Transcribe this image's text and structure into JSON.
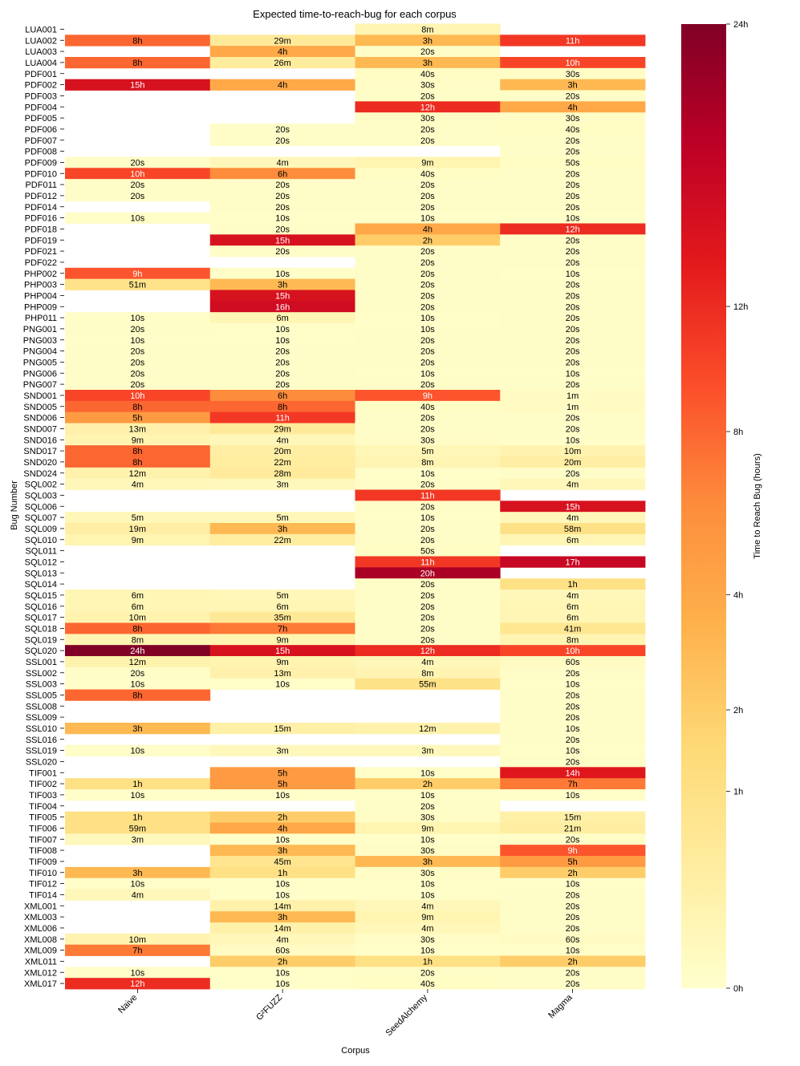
{
  "chart_data": {
    "type": "heatmap",
    "title": "Expected time-to-reach-bug for each corpus",
    "xlabel": "Corpus",
    "ylabel": "Bug Number",
    "columns": [
      "Naive",
      "G²FUZZ",
      "SeedAlchemy",
      "Magma"
    ],
    "colorbar": {
      "label": "Time to Reach Bug (hours)",
      "ticks": [
        "24h",
        "12h",
        "8h",
        "4h",
        "2h",
        "1h",
        "0h"
      ],
      "scale": "sqrt",
      "range_hours": [
        0,
        24
      ]
    },
    "rows": [
      {
        "bug": "LUA001",
        "cells": [
          "",
          "",
          "8m",
          ""
        ]
      },
      {
        "bug": "LUA002",
        "cells": [
          "8h",
          "29m",
          "3h",
          "11h"
        ]
      },
      {
        "bug": "LUA003",
        "cells": [
          "",
          "4h",
          "20s",
          ""
        ]
      },
      {
        "bug": "LUA004",
        "cells": [
          "8h",
          "26m",
          "3h",
          "10h"
        ]
      },
      {
        "bug": "PDF001",
        "cells": [
          "",
          "",
          "40s",
          "30s"
        ]
      },
      {
        "bug": "PDF002",
        "cells": [
          "15h",
          "4h",
          "30s",
          "3h"
        ]
      },
      {
        "bug": "PDF003",
        "cells": [
          "",
          "",
          "20s",
          "20s"
        ]
      },
      {
        "bug": "PDF004",
        "cells": [
          "",
          "",
          "12h",
          "4h"
        ]
      },
      {
        "bug": "PDF005",
        "cells": [
          "",
          "",
          "30s",
          "30s"
        ]
      },
      {
        "bug": "PDF006",
        "cells": [
          "",
          "20s",
          "20s",
          "40s"
        ]
      },
      {
        "bug": "PDF007",
        "cells": [
          "",
          "20s",
          "20s",
          "20s"
        ]
      },
      {
        "bug": "PDF008",
        "cells": [
          "",
          "",
          "",
          "20s"
        ]
      },
      {
        "bug": "PDF009",
        "cells": [
          "20s",
          "4m",
          "9m",
          "50s"
        ]
      },
      {
        "bug": "PDF010",
        "cells": [
          "10h",
          "6h",
          "40s",
          "20s"
        ]
      },
      {
        "bug": "PDF011",
        "cells": [
          "20s",
          "20s",
          "20s",
          "20s"
        ]
      },
      {
        "bug": "PDF012",
        "cells": [
          "20s",
          "20s",
          "20s",
          "20s"
        ]
      },
      {
        "bug": "PDF014",
        "cells": [
          "",
          "20s",
          "20s",
          "20s"
        ]
      },
      {
        "bug": "PDF016",
        "cells": [
          "10s",
          "10s",
          "10s",
          "10s"
        ]
      },
      {
        "bug": "PDF018",
        "cells": [
          "",
          "20s",
          "4h",
          "12h"
        ]
      },
      {
        "bug": "PDF019",
        "cells": [
          "",
          "15h",
          "2h",
          "20s"
        ]
      },
      {
        "bug": "PDF021",
        "cells": [
          "",
          "20s",
          "20s",
          "20s"
        ]
      },
      {
        "bug": "PDF022",
        "cells": [
          "",
          "",
          "20s",
          "20s"
        ]
      },
      {
        "bug": "PHP002",
        "cells": [
          "9h",
          "10s",
          "20s",
          "10s"
        ]
      },
      {
        "bug": "PHP003",
        "cells": [
          "51m",
          "3h",
          "20s",
          "20s"
        ]
      },
      {
        "bug": "PHP004",
        "cells": [
          "",
          "15h",
          "20s",
          "20s"
        ]
      },
      {
        "bug": "PHP009",
        "cells": [
          "",
          "16h",
          "20s",
          "20s"
        ]
      },
      {
        "bug": "PHP011",
        "cells": [
          "10s",
          "6m",
          "10s",
          "20s"
        ]
      },
      {
        "bug": "PNG001",
        "cells": [
          "20s",
          "10s",
          "10s",
          "20s"
        ]
      },
      {
        "bug": "PNG003",
        "cells": [
          "10s",
          "10s",
          "20s",
          "20s"
        ]
      },
      {
        "bug": "PNG004",
        "cells": [
          "20s",
          "20s",
          "20s",
          "20s"
        ]
      },
      {
        "bug": "PNG005",
        "cells": [
          "20s",
          "20s",
          "20s",
          "20s"
        ]
      },
      {
        "bug": "PNG006",
        "cells": [
          "20s",
          "20s",
          "10s",
          "10s"
        ]
      },
      {
        "bug": "PNG007",
        "cells": [
          "20s",
          "20s",
          "20s",
          "20s"
        ]
      },
      {
        "bug": "SND001",
        "cells": [
          "10h",
          "6h",
          "9h",
          "1m"
        ]
      },
      {
        "bug": "SND005",
        "cells": [
          "8h",
          "8h",
          "40s",
          "1m"
        ]
      },
      {
        "bug": "SND006",
        "cells": [
          "5h",
          "11h",
          "20s",
          "20s"
        ]
      },
      {
        "bug": "SND007",
        "cells": [
          "13m",
          "29m",
          "20s",
          "20s"
        ]
      },
      {
        "bug": "SND016",
        "cells": [
          "9m",
          "4m",
          "30s",
          "10s"
        ]
      },
      {
        "bug": "SND017",
        "cells": [
          "8h",
          "20m",
          "5m",
          "10m"
        ]
      },
      {
        "bug": "SND020",
        "cells": [
          "8h",
          "22m",
          "8m",
          "20m"
        ]
      },
      {
        "bug": "SND024",
        "cells": [
          "12m",
          "28m",
          "10s",
          "20s"
        ]
      },
      {
        "bug": "SQL002",
        "cells": [
          "4m",
          "3m",
          "20s",
          "4m"
        ]
      },
      {
        "bug": "SQL003",
        "cells": [
          "",
          "",
          "11h",
          ""
        ]
      },
      {
        "bug": "SQL006",
        "cells": [
          "",
          "",
          "20s",
          "15h"
        ]
      },
      {
        "bug": "SQL007",
        "cells": [
          "5m",
          "5m",
          "10s",
          "4m"
        ]
      },
      {
        "bug": "SQL009",
        "cells": [
          "19m",
          "3h",
          "20s",
          "58m"
        ]
      },
      {
        "bug": "SQL010",
        "cells": [
          "9m",
          "22m",
          "20s",
          "6m"
        ]
      },
      {
        "bug": "SQL011",
        "cells": [
          "",
          "",
          "50s",
          ""
        ]
      },
      {
        "bug": "SQL012",
        "cells": [
          "",
          "",
          "11h",
          "17h"
        ]
      },
      {
        "bug": "SQL013",
        "cells": [
          "",
          "",
          "20h",
          ""
        ]
      },
      {
        "bug": "SQL014",
        "cells": [
          "",
          "",
          "20s",
          "1h"
        ]
      },
      {
        "bug": "SQL015",
        "cells": [
          "6m",
          "5m",
          "20s",
          "4m"
        ]
      },
      {
        "bug": "SQL016",
        "cells": [
          "6m",
          "6m",
          "20s",
          "6m"
        ]
      },
      {
        "bug": "SQL017",
        "cells": [
          "10m",
          "35m",
          "20s",
          "6m"
        ]
      },
      {
        "bug": "SQL018",
        "cells": [
          "8h",
          "7h",
          "20s",
          "41m"
        ]
      },
      {
        "bug": "SQL019",
        "cells": [
          "8m",
          "9m",
          "20s",
          "8m"
        ]
      },
      {
        "bug": "SQL020",
        "cells": [
          "24h",
          "15h",
          "12h",
          "10h"
        ]
      },
      {
        "bug": "SSL001",
        "cells": [
          "12m",
          "9m",
          "4m",
          "60s"
        ]
      },
      {
        "bug": "SSL002",
        "cells": [
          "20s",
          "13m",
          "8m",
          "20s"
        ]
      },
      {
        "bug": "SSL003",
        "cells": [
          "10s",
          "10s",
          "55m",
          "10s"
        ]
      },
      {
        "bug": "SSL005",
        "cells": [
          "8h",
          "",
          "",
          "20s"
        ]
      },
      {
        "bug": "SSL008",
        "cells": [
          "",
          "",
          "",
          "20s"
        ]
      },
      {
        "bug": "SSL009",
        "cells": [
          "",
          "",
          "",
          "20s"
        ]
      },
      {
        "bug": "SSL010",
        "cells": [
          "3h",
          "15m",
          "12m",
          "10s"
        ]
      },
      {
        "bug": "SSL016",
        "cells": [
          "",
          "",
          "",
          "20s"
        ]
      },
      {
        "bug": "SSL019",
        "cells": [
          "10s",
          "3m",
          "3m",
          "10s"
        ]
      },
      {
        "bug": "SSL020",
        "cells": [
          "",
          "",
          "",
          "20s"
        ]
      },
      {
        "bug": "TIF001",
        "cells": [
          "",
          "5h",
          "10s",
          "14h"
        ]
      },
      {
        "bug": "TIF002",
        "cells": [
          "1h",
          "5h",
          "2h",
          "7h"
        ]
      },
      {
        "bug": "TIF003",
        "cells": [
          "10s",
          "10s",
          "10s",
          "10s"
        ]
      },
      {
        "bug": "TIF004",
        "cells": [
          "",
          "",
          "20s",
          ""
        ]
      },
      {
        "bug": "TIF005",
        "cells": [
          "1h",
          "2h",
          "30s",
          "15m"
        ]
      },
      {
        "bug": "TIF006",
        "cells": [
          "59m",
          "4h",
          "9m",
          "21m"
        ]
      },
      {
        "bug": "TIF007",
        "cells": [
          "3m",
          "10s",
          "10s",
          "20s"
        ]
      },
      {
        "bug": "TIF008",
        "cells": [
          "",
          "3h",
          "30s",
          "9h"
        ]
      },
      {
        "bug": "TIF009",
        "cells": [
          "",
          "45m",
          "3h",
          "5h"
        ]
      },
      {
        "bug": "TIF010",
        "cells": [
          "3h",
          "1h",
          "30s",
          "2h"
        ]
      },
      {
        "bug": "TIF012",
        "cells": [
          "10s",
          "10s",
          "10s",
          "10s"
        ]
      },
      {
        "bug": "TIF014",
        "cells": [
          "4m",
          "10s",
          "10s",
          "20s"
        ]
      },
      {
        "bug": "XML001",
        "cells": [
          "",
          "14m",
          "4m",
          "20s"
        ]
      },
      {
        "bug": "XML003",
        "cells": [
          "",
          "3h",
          "9m",
          "20s"
        ]
      },
      {
        "bug": "XML006",
        "cells": [
          "",
          "14m",
          "4m",
          "20s"
        ]
      },
      {
        "bug": "XML008",
        "cells": [
          "10m",
          "4m",
          "30s",
          "60s"
        ]
      },
      {
        "bug": "XML009",
        "cells": [
          "7h",
          "60s",
          "10s",
          "10s"
        ]
      },
      {
        "bug": "XML011",
        "cells": [
          "",
          "2h",
          "1h",
          "2h"
        ]
      },
      {
        "bug": "XML012",
        "cells": [
          "10s",
          "10s",
          "20s",
          "20s"
        ]
      },
      {
        "bug": "XML017",
        "cells": [
          "12h",
          "10s",
          "40s",
          "20s"
        ]
      }
    ]
  }
}
